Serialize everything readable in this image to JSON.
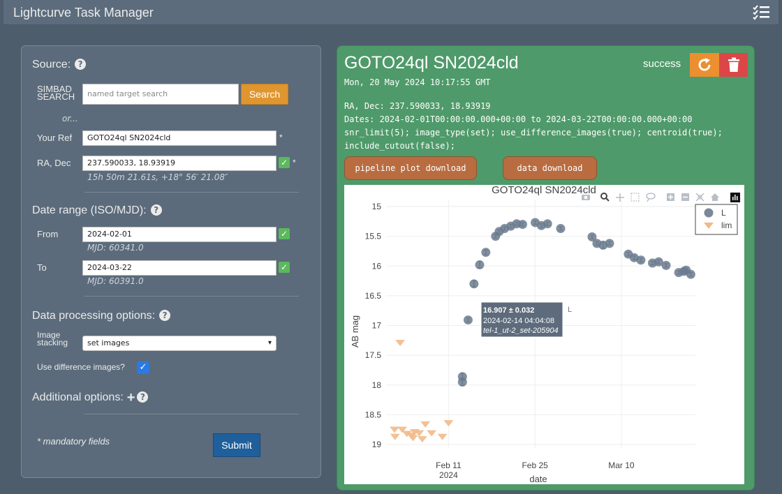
{
  "app": {
    "title": "Lightcurve Task Manager"
  },
  "form": {
    "source_title": "Source:",
    "simbad_label": "SIMBAD\nSEARCH",
    "search_placeholder": "named target search",
    "search_button": "Search",
    "or_text": "or...",
    "your_ref_label": "Your Ref",
    "your_ref_value": "GOTO24ql SN2024cld",
    "radec_label": "RA, Dec",
    "radec_value": "237.590033, 18.93919",
    "radec_sexagesimal": "15h 50m 21.61s, +18° 56′ 21.08″",
    "required_mark": "*",
    "date_range_title": "Date range (ISO/MJD):",
    "from_label": "From",
    "from_value": "2024-02-01",
    "from_mjd": "MJD: 60341.0",
    "to_label": "To",
    "to_value": "2024-03-22",
    "to_mjd": "MJD: 60391.0",
    "processing_title": "Data processing options:",
    "image_stacking_label": "Image\nstacking",
    "image_stacking_value": "set images",
    "use_diff_label": "Use difference images?",
    "use_diff_checked": true,
    "additional_title": "Additional options:",
    "mandatory_note": "* mandatory fields",
    "submit_button": "Submit"
  },
  "task": {
    "title": "GOTO24ql SN2024cld",
    "date": "Mon, 20 May 2024 10:17:55 GMT",
    "status": "success",
    "radec_line": "RA, Dec: 237.590033, 18.93919",
    "dates_line": "Dates: 2024-02-01T00:00:00.000+00:00 to 2024-03-22T00:00:00.000+00:00",
    "params_line1": "snr_limit(5); image_type(set); use_difference_images(true); centroid(true);",
    "params_line2": "include_cutout(false);",
    "plot_button": "pipeline plot download",
    "data_button": "data download"
  },
  "colors": {
    "detection": "#6b7b8e",
    "limit": "#f2b98a",
    "panel_green": "#4f9a6a",
    "accent_orange": "#e0962f"
  },
  "chart_data": {
    "type": "scatter",
    "title": "GOTO24ql SN2024cld",
    "xlabel": "date",
    "ylabel": "AB mag",
    "ylim": [
      19.0,
      15.0
    ],
    "y_reversed": true,
    "xlim": [
      "2024-02-01",
      "2024-03-22"
    ],
    "x_ticks": [
      "Feb 11\n2024",
      "Feb 25",
      "Mar 10"
    ],
    "y_ticks": [
      "15",
      "15.5",
      "16",
      "16.5",
      "17",
      "17.5",
      "18",
      "18.5",
      "19"
    ],
    "legend_position": "top-right",
    "series": [
      {
        "name": "L",
        "marker": "circle",
        "x": [
          "2024-02-13 06:00",
          "2024-02-13 06:00",
          "2024-02-14 04:04",
          "2024-02-15 03:00",
          "2024-02-16 01:00",
          "2024-02-17 01:00",
          "2024-02-18 15:00",
          "2024-02-19 05:00",
          "2024-02-20 02:00",
          "2024-02-21 02:00",
          "2024-02-22 01:00",
          "2024-02-23 00:00",
          "2024-02-25 01:00",
          "2024-02-26 01:00",
          "2024-02-27 01:00",
          "2024-02-29 04:00",
          "2024-03-05 06:00",
          "2024-03-06 01:00",
          "2024-03-07 01:00",
          "2024-03-08 02:00",
          "2024-03-11 03:00",
          "2024-03-12 02:00",
          "2024-03-13 04:00",
          "2024-03-15 01:00",
          "2024-03-16 01:00",
          "2024-03-17 06:00",
          "2024-03-19 07:00",
          "2024-03-20 03:00",
          "2024-03-20 12:00",
          "2024-03-21 06:00"
        ],
        "y": [
          17.86,
          17.95,
          16.907,
          16.3,
          15.98,
          15.77,
          15.5,
          15.42,
          15.37,
          15.33,
          15.29,
          15.3,
          15.27,
          15.32,
          15.29,
          15.37,
          15.51,
          15.62,
          15.65,
          15.62,
          15.8,
          15.86,
          15.9,
          15.95,
          15.93,
          15.99,
          16.11,
          16.09,
          16.07,
          16.14
        ],
        "yerr": [
          0.06,
          0.06,
          0.032,
          0.05,
          0.05,
          0.04,
          0.03,
          0.03,
          0.03,
          0.03,
          0.03,
          0.03,
          0.03,
          0.03,
          0.03,
          0.03,
          0.03,
          0.03,
          0.05,
          0.03,
          0.03,
          0.03,
          0.03,
          0.03,
          0.03,
          0.03,
          0.03,
          0.03,
          0.03,
          0.03
        ]
      },
      {
        "name": "lim",
        "marker": "triangle-down",
        "x": [
          "2024-02-02 06:00",
          "2024-02-02 08:00",
          "2024-02-03 12:00",
          "2024-02-04 06:00",
          "2024-02-05 00:00",
          "2024-02-05 06:00",
          "2024-02-05 12:00",
          "2024-02-06 06:00",
          "2024-02-06 18:00",
          "2024-02-07 06:00",
          "2024-02-08 06:00",
          "2024-02-10 00:00",
          "2024-02-11 00:00",
          "2024-02-03 04:00"
        ],
        "y": [
          18.76,
          18.88,
          18.76,
          18.83,
          18.86,
          18.9,
          18.8,
          18.82,
          18.92,
          18.67,
          18.82,
          18.88,
          18.65,
          17.3
        ]
      }
    ],
    "tooltip": {
      "line1": "16.907 ± 0.032",
      "line2": "2024-02-14 04:04:08",
      "line3": "tel-1_ut-2_set-205904",
      "series": "L"
    }
  }
}
